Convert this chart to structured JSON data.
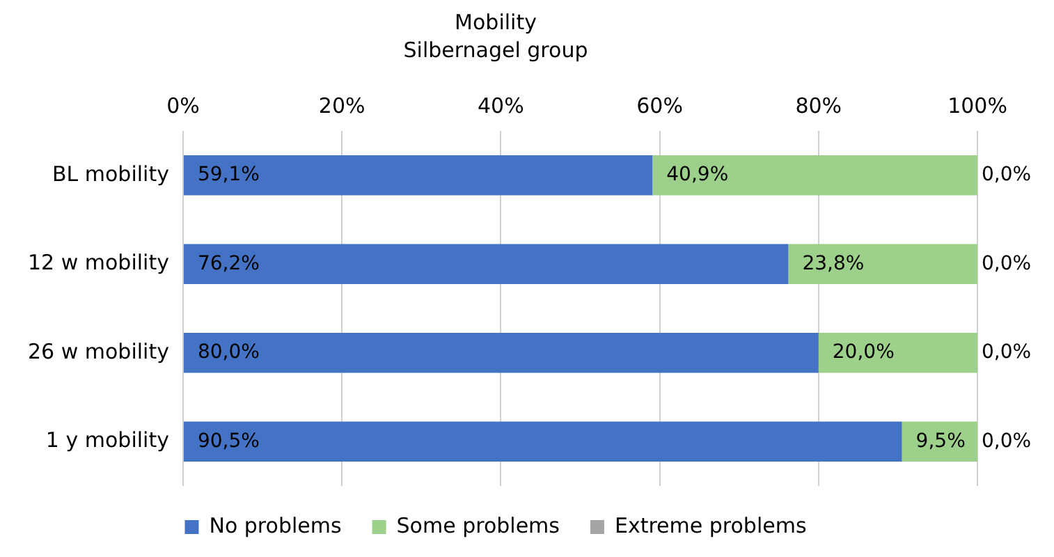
{
  "chart_data": {
    "type": "bar",
    "orientation": "horizontal",
    "stacked": true,
    "title": "Mobility",
    "subtitle": "Silbernagel group",
    "categories": [
      "BL mobility",
      "12 w mobility",
      "26 w mobility",
      "1 y mobility"
    ],
    "series": [
      {
        "name": "No problems",
        "color": "#4472c4",
        "values": [
          59.1,
          76.2,
          80.0,
          90.5
        ],
        "value_labels": [
          "59,1%",
          "76,2%",
          "80,0%",
          "90,5%"
        ]
      },
      {
        "name": "Some problems",
        "color": "#9dd08a",
        "values": [
          40.9,
          23.8,
          20.0,
          9.5
        ],
        "value_labels": [
          "40,9%",
          "23,8%",
          "20,0%",
          "9,5%"
        ]
      },
      {
        "name": "Extreme problems",
        "color": "#a5a5a5",
        "values": [
          0.0,
          0.0,
          0.0,
          0.0
        ],
        "value_labels": [
          "0,0%",
          "0,0%",
          "0,0%",
          "0,0%"
        ]
      }
    ],
    "xlim": [
      0,
      100
    ],
    "xticks": [
      {
        "value": 0,
        "label": "0%"
      },
      {
        "value": 20,
        "label": "20%"
      },
      {
        "value": 40,
        "label": "40%"
      },
      {
        "value": 60,
        "label": "60%"
      },
      {
        "value": 80,
        "label": "80%"
      },
      {
        "value": 100,
        "label": "100%"
      }
    ],
    "grid": "x",
    "legend": "bottom"
  }
}
